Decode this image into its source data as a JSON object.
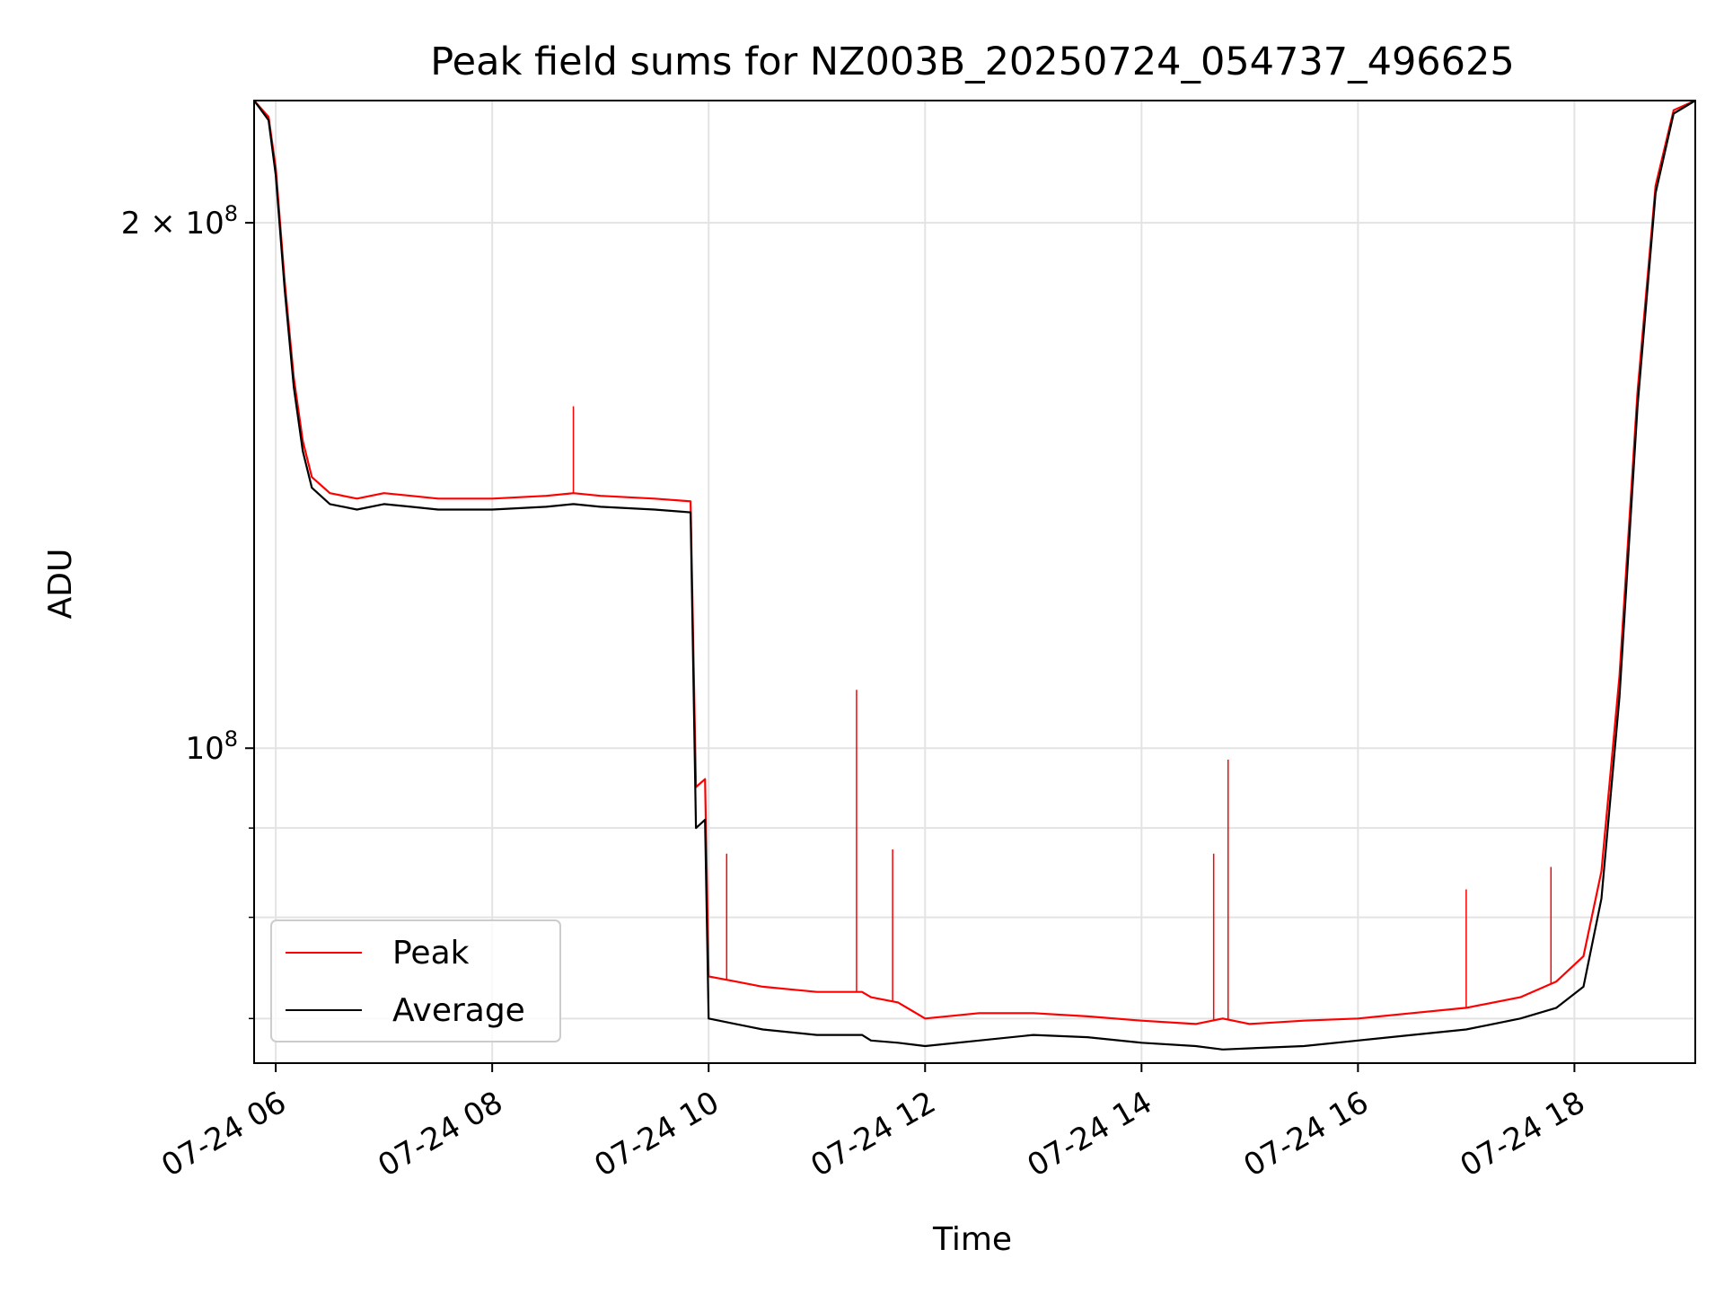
{
  "chart_data": {
    "type": "line",
    "title": "Peak field sums for NZ003B_20250724_054737_496625",
    "xlabel": "Time",
    "ylabel": "ADU",
    "x_scale": "time",
    "y_scale": "log",
    "xlim": [
      "2025-07-24 05:48",
      "2025-07-24 19:07"
    ],
    "ylim": [
      66000000,
      235000000
    ],
    "x_ticks": [
      {
        "t": "2025-07-24 06:00",
        "label": "07-24 06"
      },
      {
        "t": "2025-07-24 08:00",
        "label": "07-24 08"
      },
      {
        "t": "2025-07-24 10:00",
        "label": "07-24 10"
      },
      {
        "t": "2025-07-24 12:00",
        "label": "07-24 12"
      },
      {
        "t": "2025-07-24 14:00",
        "label": "07-24 14"
      },
      {
        "t": "2025-07-24 16:00",
        "label": "07-24 16"
      },
      {
        "t": "2025-07-24 18:00",
        "label": "07-24 18"
      }
    ],
    "y_major_ticks": [
      {
        "value": 100000000,
        "base": "10",
        "exp": "8",
        "mult": ""
      },
      {
        "value": 200000000,
        "base": "10",
        "exp": "8",
        "mult": "2 × "
      }
    ],
    "y_minor_ticks": [
      70000000,
      80000000,
      90000000
    ],
    "grid": true,
    "legend": {
      "position": "lower-left",
      "entries": [
        {
          "label": "Peak",
          "color": "#ff0000"
        },
        {
          "label": "Average",
          "color": "#000000"
        }
      ]
    },
    "series": [
      {
        "name": "Peak",
        "color": "#ff0000",
        "x": [
          "2025-07-24 05:48",
          "2025-07-24 05:56",
          "2025-07-24 06:00",
          "2025-07-24 06:05",
          "2025-07-24 06:10",
          "2025-07-24 06:15",
          "2025-07-24 06:20",
          "2025-07-24 06:30",
          "2025-07-24 06:45",
          "2025-07-24 07:00",
          "2025-07-24 07:15",
          "2025-07-24 07:30",
          "2025-07-24 08:00",
          "2025-07-24 08:30",
          "2025-07-24 08:45",
          "2025-07-24 09:00",
          "2025-07-24 09:30",
          "2025-07-24 09:50",
          "2025-07-24 09:53",
          "2025-07-24 09:58",
          "2025-07-24 10:00",
          "2025-07-24 10:15",
          "2025-07-24 10:30",
          "2025-07-24 11:00",
          "2025-07-24 11:25",
          "2025-07-24 11:30",
          "2025-07-24 11:45",
          "2025-07-24 12:00",
          "2025-07-24 12:30",
          "2025-07-24 13:00",
          "2025-07-24 13:30",
          "2025-07-24 14:00",
          "2025-07-24 14:30",
          "2025-07-24 14:45",
          "2025-07-24 15:00",
          "2025-07-24 15:30",
          "2025-07-24 16:00",
          "2025-07-24 16:30",
          "2025-07-24 17:00",
          "2025-07-24 17:30",
          "2025-07-24 17:50",
          "2025-07-24 18:05",
          "2025-07-24 18:15",
          "2025-07-24 18:25",
          "2025-07-24 18:35",
          "2025-07-24 18:45",
          "2025-07-24 18:55",
          "2025-07-24 19:07"
        ],
        "y": [
          235000000,
          230000000,
          215000000,
          185000000,
          163000000,
          150000000,
          143000000,
          140000000,
          139000000,
          140000000,
          139500000,
          139000000,
          139000000,
          139500000,
          140000000,
          139500000,
          139000000,
          138500000,
          95000000,
          96000000,
          74000000,
          73500000,
          73000000,
          72500000,
          72500000,
          72000000,
          71500000,
          70000000,
          70500000,
          70500000,
          70200000,
          69800000,
          69500000,
          70000000,
          69500000,
          69800000,
          70000000,
          70500000,
          71000000,
          72000000,
          73500000,
          76000000,
          85000000,
          110000000,
          160000000,
          210000000,
          232000000,
          235000000
        ]
      },
      {
        "name": "Average",
        "color": "#000000",
        "x": [
          "2025-07-24 05:48",
          "2025-07-24 05:56",
          "2025-07-24 06:00",
          "2025-07-24 06:05",
          "2025-07-24 06:10",
          "2025-07-24 06:15",
          "2025-07-24 06:20",
          "2025-07-24 06:30",
          "2025-07-24 06:45",
          "2025-07-24 07:00",
          "2025-07-24 07:15",
          "2025-07-24 07:30",
          "2025-07-24 08:00",
          "2025-07-24 08:30",
          "2025-07-24 08:45",
          "2025-07-24 09:00",
          "2025-07-24 09:30",
          "2025-07-24 09:50",
          "2025-07-24 09:53",
          "2025-07-24 09:58",
          "2025-07-24 10:00",
          "2025-07-24 10:15",
          "2025-07-24 10:30",
          "2025-07-24 11:00",
          "2025-07-24 11:25",
          "2025-07-24 11:30",
          "2025-07-24 11:45",
          "2025-07-24 12:00",
          "2025-07-24 12:30",
          "2025-07-24 13:00",
          "2025-07-24 13:30",
          "2025-07-24 14:00",
          "2025-07-24 14:30",
          "2025-07-24 14:45",
          "2025-07-24 15:00",
          "2025-07-24 15:30",
          "2025-07-24 16:00",
          "2025-07-24 16:30",
          "2025-07-24 17:00",
          "2025-07-24 17:30",
          "2025-07-24 17:50",
          "2025-07-24 18:05",
          "2025-07-24 18:15",
          "2025-07-24 18:25",
          "2025-07-24 18:35",
          "2025-07-24 18:45",
          "2025-07-24 18:55",
          "2025-07-24 19:07"
        ],
        "y": [
          235000000,
          229000000,
          213000000,
          183000000,
          161000000,
          148000000,
          141000000,
          138000000,
          137000000,
          138000000,
          137500000,
          137000000,
          137000000,
          137500000,
          138000000,
          137500000,
          137000000,
          136500000,
          90000000,
          91000000,
          70000000,
          69500000,
          69000000,
          68500000,
          68500000,
          68000000,
          67800000,
          67500000,
          68000000,
          68500000,
          68300000,
          67800000,
          67500000,
          67200000,
          67300000,
          67500000,
          68000000,
          68500000,
          69000000,
          70000000,
          71000000,
          73000000,
          82000000,
          107000000,
          157000000,
          208000000,
          231000000,
          235000000
        ]
      }
    ],
    "spikes": [
      {
        "series": "Peak",
        "t": "2025-07-24 08:45",
        "y": 157000000
      },
      {
        "series": "Peak",
        "t": "2025-07-24 10:10",
        "y": 87000000
      },
      {
        "series": "Peak",
        "t": "2025-07-24 11:22",
        "y": 108000000
      },
      {
        "series": "Peak",
        "t": "2025-07-24 11:42",
        "y": 87500000
      },
      {
        "series": "Peak",
        "t": "2025-07-24 14:40",
        "y": 87000000
      },
      {
        "series": "Peak",
        "t": "2025-07-24 14:48",
        "y": 98500000
      },
      {
        "series": "Peak",
        "t": "2025-07-24 17:00",
        "y": 83000000
      },
      {
        "series": "Peak",
        "t": "2025-07-24 17:47",
        "y": 85500000
      }
    ]
  }
}
